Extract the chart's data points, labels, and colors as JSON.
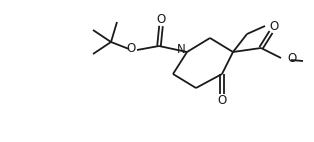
{
  "bg_color": "#ffffff",
  "line_color": "#1a1a1a",
  "line_width": 1.3,
  "figsize": [
    3.14,
    1.42
  ],
  "dpi": 100,
  "xlim": [
    0,
    314
  ],
  "ylim": [
    0,
    142
  ]
}
